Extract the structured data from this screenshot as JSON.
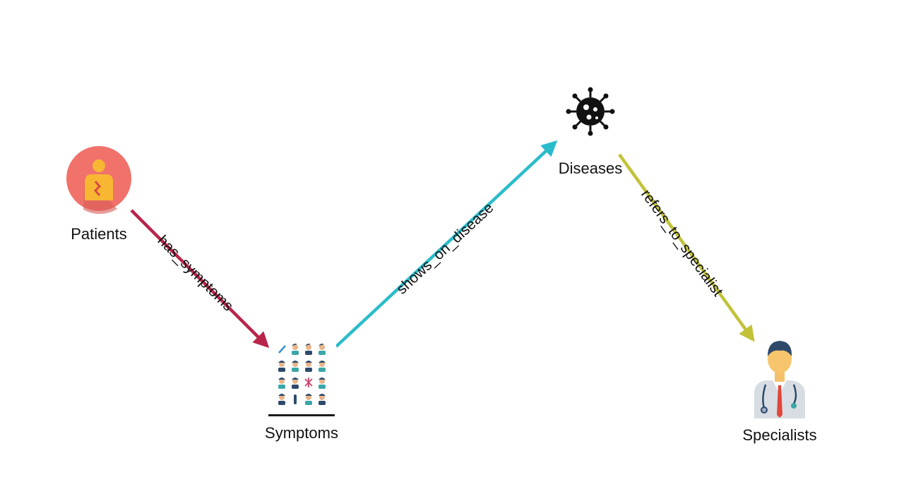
{
  "nodes": {
    "patients": {
      "label": "Patients",
      "icon": "patient-body-icon",
      "color": "#f0726b"
    },
    "symptoms": {
      "label": "Symptoms",
      "icon": "symptoms-grid-icon"
    },
    "diseases": {
      "label": "Diseases",
      "icon": "virus-icon"
    },
    "specialists": {
      "label": "Specialists",
      "icon": "doctor-icon"
    }
  },
  "edges": {
    "has_symptoms": {
      "label": "has_symptoms",
      "color": "#b8244a"
    },
    "shows_on_disease": {
      "label": "shows_on_disease",
      "color": "#2bbccb"
    },
    "refers_to_specialist": {
      "label": "refers_to_specialist",
      "color": "#c2c23a"
    }
  }
}
